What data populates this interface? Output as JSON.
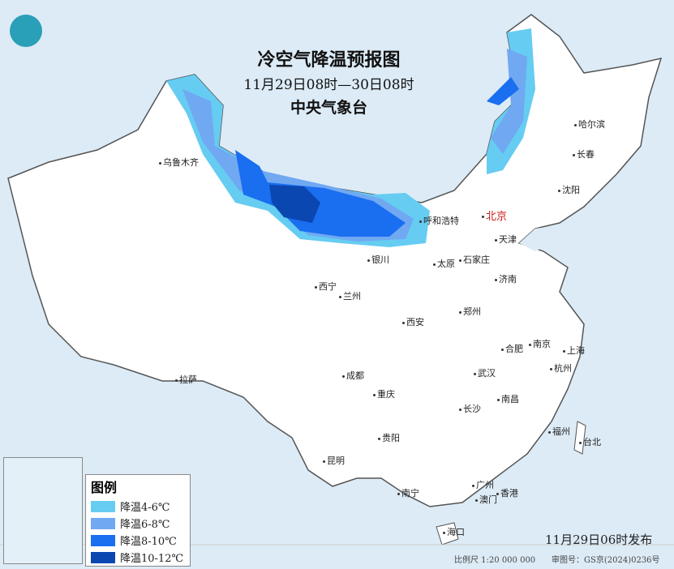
{
  "header": {
    "title": "冷空气降温预报图",
    "period": "11月29日08时—30日08时",
    "issuer": "中央气象台"
  },
  "legend": {
    "title": "图例",
    "items": [
      {
        "label": "降温4-6℃",
        "color": "#66ccf2"
      },
      {
        "label": "降温6-8℃",
        "color": "#70a8f2"
      },
      {
        "label": "降温8-10℃",
        "color": "#1a6ef0"
      },
      {
        "label": "降温10-12℃",
        "color": "#0a47b0"
      }
    ]
  },
  "cities": [
    "乌鲁木齐",
    "呼和浩特",
    "北京",
    "天津",
    "哈尔滨",
    "长春",
    "沈阳",
    "银川",
    "太原",
    "石家庄",
    "济南",
    "西宁",
    "兰州",
    "郑州",
    "西安",
    "合肥",
    "南京",
    "上海",
    "拉萨",
    "成都",
    "武汉",
    "杭州",
    "重庆",
    "南昌",
    "长沙",
    "福州",
    "台北",
    "贵阳",
    "昆明",
    "广州",
    "香港",
    "澳门",
    "南宁",
    "海口"
  ],
  "footer": {
    "issued": "11月29日06时发布",
    "scale": "比例尺 1:20 000 000",
    "approval": "审图号：GS京(2024)0236号"
  },
  "logo": "cma-logo-icon"
}
